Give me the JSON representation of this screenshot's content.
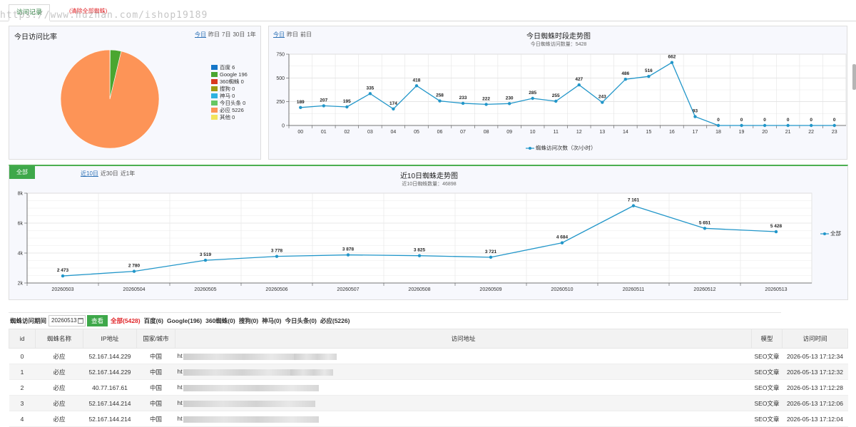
{
  "tabs": {
    "active_tab": "访问记录",
    "clear_link": "(清除全部蜘蛛)"
  },
  "watermark": "https://www.huzhan.com/ishop19189",
  "ratio_panel": {
    "title": "今日访问比率",
    "periods": [
      "今日",
      "昨日",
      "7日",
      "30日",
      "1年"
    ],
    "legend": [
      {
        "label": "百度 6",
        "color": "#1677c8",
        "value": 6
      },
      {
        "label": "Google 196",
        "color": "#4aa630",
        "value": 196
      },
      {
        "label": "360蜘蛛 0",
        "color": "#d9381e",
        "value": 0
      },
      {
        "label": "搜狗 0",
        "color": "#9c9c12",
        "value": 0
      },
      {
        "label": "神马 0",
        "color": "#2fb3e0",
        "value": 0
      },
      {
        "label": "今日头条 0",
        "color": "#65c763",
        "value": 0
      },
      {
        "label": "必应 5226",
        "color": "#fd9457",
        "value": 5226
      },
      {
        "label": "其他 0",
        "color": "#f2e35c",
        "value": 0
      }
    ]
  },
  "hour_panel": {
    "periods": [
      "今日",
      "昨日",
      "前日"
    ],
    "title": "今日蜘蛛时段走势图",
    "subtitle": "今日蜘蛛访问数量：5428",
    "legend": "蜘蛛访问次数（次/小时）"
  },
  "day_panel": {
    "button": "全部",
    "periods": [
      "近10日",
      "近30日",
      "近1年"
    ],
    "title": "近10日蜘蛛走势图",
    "subtitle": "近10日蜘蛛数量：46898",
    "legend": "全部"
  },
  "chart_data": [
    {
      "type": "pie",
      "labels": [
        "百度",
        "Google",
        "360蜘蛛",
        "搜狗",
        "神马",
        "今日头条",
        "必应",
        "其他"
      ],
      "values": [
        6,
        196,
        0,
        0,
        0,
        0,
        5226,
        0
      ],
      "legend": "right"
    },
    {
      "type": "line",
      "title": "今日蜘蛛时段走势图",
      "x": [
        "00",
        "01",
        "02",
        "03",
        "04",
        "05",
        "06",
        "07",
        "08",
        "09",
        "10",
        "11",
        "12",
        "13",
        "14",
        "15",
        "16",
        "17",
        "18",
        "19",
        "20",
        "21",
        "22",
        "23"
      ],
      "series": [
        {
          "name": "蜘蛛访问次数（次/小时）",
          "values": [
            189,
            207,
            195,
            335,
            174,
            418,
            258,
            233,
            222,
            230,
            285,
            255,
            427,
            243,
            486,
            516,
            662,
            93,
            0,
            0,
            0,
            0,
            0,
            0
          ]
        }
      ],
      "ylim": [
        0,
        750
      ],
      "yticks": [
        "0",
        "250",
        "500",
        "750"
      ],
      "grid": true,
      "legend": "bottom"
    },
    {
      "type": "line",
      "title": "近10日蜘蛛走势图",
      "x": [
        "20260503",
        "20260504",
        "20260505",
        "20260506",
        "20260507",
        "20260508",
        "20260509",
        "20260510",
        "20260511",
        "20260512",
        "20260513"
      ],
      "series": [
        {
          "name": "全部",
          "values": [
            2473,
            2780,
            3519,
            3778,
            3878,
            3825,
            3721,
            4684,
            7161,
            5651,
            5428
          ],
          "labels": [
            "2 473",
            "2 780",
            "3 519",
            "3 778",
            "3 878",
            "3 825",
            "3 721",
            "4 684",
            "7 161",
            "5 651",
            "5 428"
          ]
        }
      ],
      "ylim": [
        2000,
        8000
      ],
      "yticks": [
        "2k",
        "4k",
        "6k",
        "8k"
      ],
      "grid": true,
      "legend": "right"
    }
  ],
  "filter": {
    "label": "蜘蛛访问期间",
    "date": "20260513",
    "query": "查看",
    "items": [
      "全部(5428)",
      "百度(6)",
      "Google(196)",
      "360蜘蛛(0)",
      "搜狗(0)",
      "神马(0)",
      "今日头条(0)",
      "必应(5226)"
    ]
  },
  "table": {
    "headers": [
      "id",
      "蜘蛛名称",
      "IP地址",
      "国家/城市",
      "访问地址",
      "模型",
      "访问时间"
    ],
    "rows": [
      {
        "id": "0",
        "name": "必应",
        "ip": "52.167.144.229",
        "city": "中国",
        "url": "ht",
        "model": "SEO文章",
        "time": "2026-05-13 17:12:34"
      },
      {
        "id": "1",
        "name": "必应",
        "ip": "52.167.144.229",
        "city": "中国",
        "url": "ht",
        "model": "SEO文章",
        "time": "2026-05-13 17:12:32"
      },
      {
        "id": "2",
        "name": "必应",
        "ip": "40.77.167.61",
        "city": "中国",
        "url": "ht",
        "model": "SEO文章",
        "time": "2026-05-13 17:12:28"
      },
      {
        "id": "3",
        "name": "必应",
        "ip": "52.167.144.214",
        "city": "中国",
        "url": "ht",
        "model": "SEO文章",
        "time": "2026-05-13 17:12:06"
      },
      {
        "id": "4",
        "name": "必应",
        "ip": "52.167.144.214",
        "city": "中国",
        "url": "ht",
        "model": "SEO文章",
        "time": "2026-05-13 17:12:04"
      }
    ]
  }
}
